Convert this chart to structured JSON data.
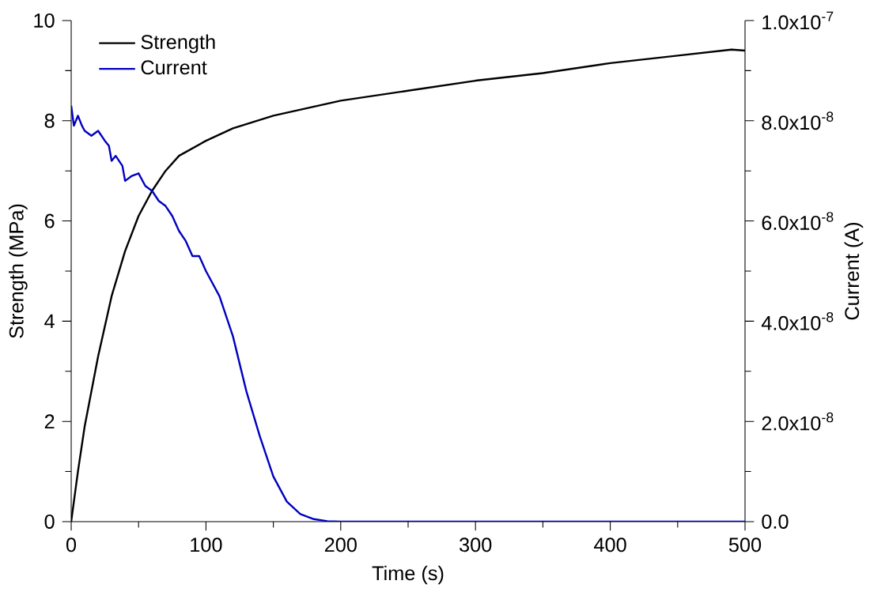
{
  "chart_data": {
    "type": "line",
    "xlabel": "Time (s)",
    "ylabel": "Strength (MPa)",
    "y2label": "Current (A)",
    "xlim": [
      0,
      500
    ],
    "xticks": [
      0,
      100,
      200,
      300,
      400,
      500
    ],
    "ylim": [
      0,
      10
    ],
    "yticks": [
      0,
      2,
      4,
      6,
      8,
      10
    ],
    "y2lim": [
      0,
      1e-07
    ],
    "y2ticks": [
      {
        "value": 0,
        "label": "0.0"
      },
      {
        "value": 2e-08,
        "label": "2.0x10$^{-8}$"
      },
      {
        "value": 4e-08,
        "label": "4.0x10$^{-8}$"
      },
      {
        "value": 6e-08,
        "label": "6.0x10$^{-8}$"
      },
      {
        "value": 8e-08,
        "label": "8.0x10$^{-8}$"
      },
      {
        "value": 1e-07,
        "label": "1.0x10$^{-7}$"
      }
    ],
    "legend": "top left",
    "grid": false,
    "marker": "none",
    "series": [
      {
        "name": "Strength",
        "color": "#000000",
        "x": [
          0,
          5,
          10,
          20,
          30,
          40,
          50,
          60,
          70,
          80,
          100,
          120,
          150,
          200,
          250,
          300,
          350,
          400,
          450,
          490,
          500
        ],
        "values": [
          0,
          1.0,
          1.9,
          3.3,
          4.5,
          5.4,
          6.1,
          6.6,
          7.0,
          7.3,
          7.6,
          7.85,
          8.1,
          8.4,
          8.6,
          8.8,
          8.95,
          9.15,
          9.3,
          9.42,
          9.4
        ]
      },
      {
        "name": "Current",
        "color": "#0000c0",
        "axis": "y2",
        "x": [
          0,
          2,
          5,
          8,
          10,
          15,
          20,
          25,
          28,
          30,
          33,
          38,
          40,
          45,
          50,
          55,
          60,
          65,
          70,
          75,
          80,
          85,
          90,
          95,
          100,
          110,
          120,
          130,
          140,
          150,
          160,
          170,
          180,
          190,
          200,
          300,
          500
        ],
        "values": [
          8.3e-08,
          7.9e-08,
          8.1e-08,
          7.9e-08,
          7.8e-08,
          7.7e-08,
          7.8e-08,
          7.6e-08,
          7.5e-08,
          7.2e-08,
          7.3e-08,
          7.1e-08,
          6.8e-08,
          6.9e-08,
          6.95e-08,
          6.7e-08,
          6.6e-08,
          6.4e-08,
          6.3e-08,
          6.1e-08,
          5.8e-08,
          5.6e-08,
          5.3e-08,
          5.3e-08,
          5e-08,
          4.5e-08,
          3.7e-08,
          2.6e-08,
          1.7e-08,
          9e-09,
          4e-09,
          1.5e-09,
          5e-10,
          1e-10,
          0,
          0,
          0
        ]
      }
    ]
  }
}
